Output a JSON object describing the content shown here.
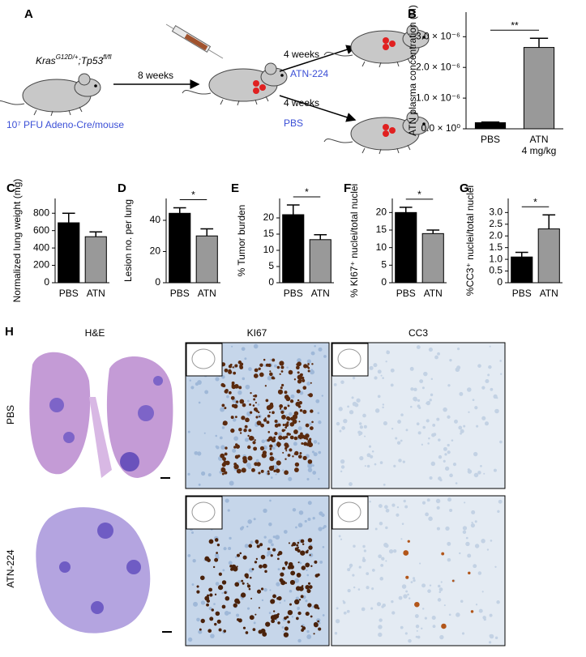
{
  "panel_a": {
    "label": "A",
    "genotype": [
      "Kras",
      "G12D/+",
      ";Tp53",
      "fl/fl"
    ],
    "dose": "10⁷ PFU Adeno-Cre/mouse",
    "first_step": "8 weeks",
    "branches": [
      {
        "time": "4 weeks",
        "treatment": "ATN-224"
      },
      {
        "time": "4 weeks",
        "treatment": "PBS"
      }
    ]
  },
  "chart_data": [
    {
      "label": "B",
      "type": "bar",
      "ylabel": "ATN plasma concentration (M)",
      "categories": [
        "PBS",
        "ATN"
      ],
      "category_sublabels": [
        null,
        "4 mg/kg"
      ],
      "values": [
        2e-07,
        2.65e-06
      ],
      "errors": [
        2e-08,
        3e-07
      ],
      "colors": [
        "#000000",
        "#999999"
      ],
      "ylim": [
        0,
        3.8e-06
      ],
      "yticks": [
        {
          "value": 0,
          "label": "0.0 × 10⁰"
        },
        {
          "value": 1e-06,
          "label": "1.0 × 10⁻⁶"
        },
        {
          "value": 2e-06,
          "label": "2.0 × 10⁻⁶"
        },
        {
          "value": 3e-06,
          "label": "3.0 × 10⁻⁶"
        }
      ],
      "annotation": "**"
    },
    {
      "label": "C",
      "type": "bar",
      "ylabel": "Normalized lung weight (mg)",
      "categories": [
        "PBS",
        "ATN"
      ],
      "values": [
        690,
        530
      ],
      "errors": [
        110,
        55
      ],
      "colors": [
        "#000000",
        "#999999"
      ],
      "ylim": [
        0,
        970
      ],
      "yticks": [
        0,
        200,
        400,
        600,
        800
      ]
    },
    {
      "label": "D",
      "type": "bar",
      "ylabel": "Lesion no. per lung",
      "categories": [
        "PBS",
        "ATN"
      ],
      "values": [
        44.5,
        30
      ],
      "errors": [
        3.5,
        4.5
      ],
      "colors": [
        "#000000",
        "#999999"
      ],
      "ylim": [
        0,
        54
      ],
      "yticks": [
        0,
        20,
        40
      ],
      "annotation": "*"
    },
    {
      "label": "E",
      "type": "bar",
      "ylabel": "% Tumor burden",
      "categories": [
        "PBS",
        "ATN"
      ],
      "values": [
        21,
        13.3
      ],
      "errors": [
        3,
        1.5
      ],
      "colors": [
        "#000000",
        "#999999"
      ],
      "ylim": [
        0,
        26
      ],
      "yticks": [
        0,
        5,
        10,
        15,
        20
      ],
      "annotation": "*"
    },
    {
      "label": "F",
      "type": "bar",
      "ylabel": "% KI67⁺ nuclei/total nuclei",
      "categories": [
        "PBS",
        "ATN"
      ],
      "values": [
        20,
        14
      ],
      "errors": [
        1.5,
        1
      ],
      "colors": [
        "#000000",
        "#999999"
      ],
      "ylim": [
        0,
        24
      ],
      "yticks": [
        0,
        5,
        10,
        15,
        20
      ],
      "annotation": "*"
    },
    {
      "label": "G",
      "type": "bar",
      "ylabel": "%CC3⁺ nuclei/total nuclei",
      "categories": [
        "PBS",
        "ATN"
      ],
      "values": [
        1.1,
        2.3
      ],
      "errors": [
        0.2,
        0.6
      ],
      "colors": [
        "#000000",
        "#999999"
      ],
      "ylim": [
        0,
        3.6
      ],
      "yticks": [
        0,
        0.5,
        {
          "value": 1,
          "label": "1.0"
        },
        1.5,
        {
          "value": 2,
          "label": "2.0"
        },
        2.5,
        {
          "value": 3,
          "label": "3.0"
        }
      ],
      "annotation": "*"
    }
  ],
  "panel_h": {
    "label": "H",
    "columns": [
      "H&E",
      "KI67",
      "CC3"
    ],
    "rows": [
      "PBS",
      "ATN-224"
    ]
  }
}
